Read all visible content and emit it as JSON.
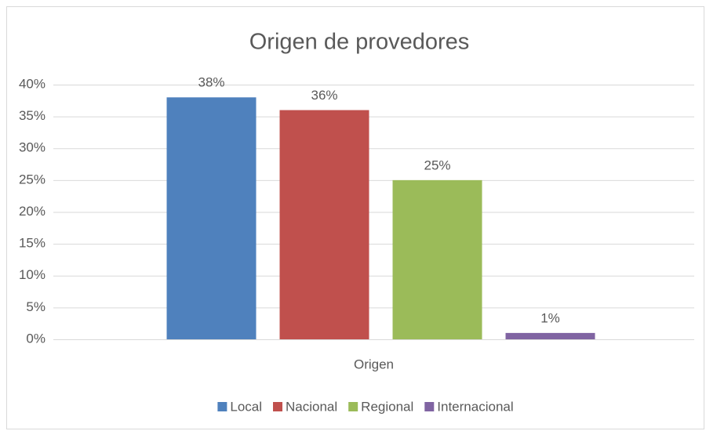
{
  "chart_data": {
    "type": "bar",
    "title": "Origen de provedores",
    "categories": [
      "Origen"
    ],
    "series": [
      {
        "name": "Local",
        "color": "#4f81bd",
        "values": [
          38
        ],
        "value_labels": [
          "38%"
        ]
      },
      {
        "name": "Nacional",
        "color": "#c0504d",
        "values": [
          36
        ],
        "value_labels": [
          "36%"
        ]
      },
      {
        "name": "Regional",
        "color": "#9bbb59",
        "values": [
          25
        ],
        "value_labels": [
          "25%"
        ]
      },
      {
        "name": "Internacional",
        "color": "#8064a2",
        "values": [
          1
        ],
        "value_labels": [
          "1%"
        ]
      }
    ],
    "ylim": [
      0,
      40
    ],
    "yticks": [
      {
        "value": 0,
        "label": "0%"
      },
      {
        "value": 5,
        "label": "5%"
      },
      {
        "value": 10,
        "label": "10%"
      },
      {
        "value": 15,
        "label": "15%"
      },
      {
        "value": 20,
        "label": "20%"
      },
      {
        "value": 25,
        "label": "25%"
      },
      {
        "value": 30,
        "label": "30%"
      },
      {
        "value": 35,
        "label": "35%"
      },
      {
        "value": 40,
        "label": "40%"
      }
    ],
    "grid": true,
    "legend": "bottom"
  }
}
